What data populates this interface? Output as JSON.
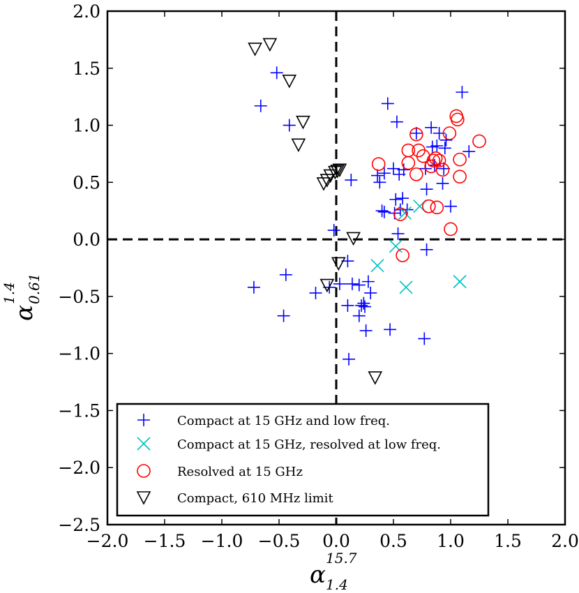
{
  "chart_data": {
    "type": "scatter",
    "xlim": [
      -2.0,
      2.0
    ],
    "ylim": [
      -2.5,
      2.0
    ],
    "xticks": [
      "−2.0",
      "−1.5",
      "−1.0",
      "−0.5",
      "0.0",
      "0.5",
      "1.0",
      "1.5",
      "2.0"
    ],
    "yticks": [
      "2.0",
      "1.5",
      "1.0",
      "0.5",
      "0.0",
      "−0.5",
      "−1.0",
      "−1.5",
      "−2.0",
      "−2.5"
    ],
    "xlabel": {
      "base": "α",
      "sup": "15.7",
      "sub": "1.4"
    },
    "ylabel": {
      "base": "α",
      "sup": "1.4",
      "sub": "0.61"
    },
    "reference_lines": {
      "x": 0.0,
      "y": 0.0,
      "style": "dashed"
    },
    "legend_position": "lower-left",
    "series": [
      {
        "name": "Compact at 15 GHz and low freq.",
        "marker": "plus",
        "color": "#0000ff",
        "x": [
          -0.52,
          -0.66,
          -0.41,
          -0.72,
          -0.44,
          -0.46,
          -0.18,
          -0.06,
          -0.02,
          0.1,
          0.13,
          0.03,
          0.24,
          0.22,
          0.28,
          0.2,
          0.26,
          0.3,
          0.47,
          0.11,
          0.36,
          0.38,
          0.42,
          0.45,
          0.53,
          0.4,
          0.52,
          0.54,
          0.58,
          0.56,
          0.62,
          0.59,
          0.7,
          0.79,
          0.83,
          0.84,
          0.86,
          0.88,
          0.9,
          0.93,
          0.94,
          0.95,
          0.96,
          1.0,
          1.1,
          1.16,
          0.77,
          0.79,
          0.78,
          0.42,
          0.5,
          0.51,
          0.55,
          0.14,
          0.1,
          0.2,
          0.25
        ],
        "y": [
          1.46,
          1.17,
          1.0,
          -0.42,
          -0.31,
          -0.67,
          -0.47,
          -0.42,
          0.08,
          -0.19,
          0.52,
          -0.39,
          -0.56,
          -0.58,
          -0.37,
          -0.67,
          -0.8,
          -0.47,
          -0.79,
          -1.05,
          0.56,
          0.5,
          0.58,
          1.19,
          1.03,
          0.25,
          0.35,
          0.05,
          0.36,
          0.26,
          0.26,
          0.61,
          0.93,
          0.44,
          0.98,
          0.81,
          0.65,
          0.82,
          0.93,
          0.49,
          0.62,
          0.8,
          0.87,
          0.29,
          1.29,
          0.77,
          -0.87,
          -0.09,
          0.62,
          0.24,
          0.62,
          0.23,
          0.57,
          -0.39,
          -0.58,
          -0.4,
          -0.59
        ]
      },
      {
        "name": "Compact at 15 GHz, resolved at low freq.",
        "marker": "x",
        "color": "#00bfbf",
        "x": [
          0.36,
          0.52,
          0.6,
          0.61,
          0.73,
          1.08
        ],
        "y": [
          -0.23,
          -0.06,
          0.23,
          -0.42,
          0.29,
          -0.37
        ]
      },
      {
        "name": "Resolved at 15 GHz",
        "marker": "circle",
        "color": "#ff0000",
        "x": [
          0.37,
          0.56,
          0.58,
          0.63,
          0.63,
          0.7,
          0.7,
          0.72,
          0.76,
          0.81,
          0.83,
          0.85,
          0.87,
          0.88,
          0.9,
          0.93,
          0.99,
          1.0,
          1.05,
          1.06,
          1.08,
          1.08,
          1.25
        ],
        "y": [
          0.66,
          0.22,
          -0.14,
          0.78,
          0.67,
          0.57,
          0.92,
          0.78,
          0.73,
          0.29,
          0.64,
          0.69,
          0.71,
          0.28,
          0.69,
          0.61,
          0.93,
          0.09,
          1.08,
          1.05,
          0.7,
          0.55,
          0.86
        ]
      },
      {
        "name": "Compact, 610 MHz limit",
        "marker": "triangle-down",
        "color": "#000000",
        "x": [
          -0.71,
          -0.58,
          -0.41,
          -0.29,
          -0.33,
          -0.11,
          -0.08,
          -0.05,
          -0.01,
          0.01,
          0.03,
          0.15,
          0.02,
          -0.08,
          0.34
        ],
        "y": [
          1.67,
          1.71,
          1.39,
          1.03,
          0.83,
          0.49,
          0.52,
          0.56,
          0.59,
          0.6,
          0.61,
          0.01,
          -0.21,
          -0.4,
          -1.21
        ]
      }
    ]
  }
}
